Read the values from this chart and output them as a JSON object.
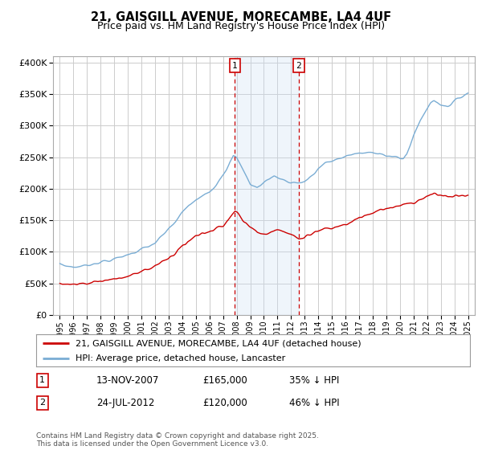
{
  "title": "21, GAISGILL AVENUE, MORECAMBE, LA4 4UF",
  "subtitle": "Price paid vs. HM Land Registry's House Price Index (HPI)",
  "legend_line1": "21, GAISGILL AVENUE, MORECAMBE, LA4 4UF (detached house)",
  "legend_line2": "HPI: Average price, detached house, Lancaster",
  "annotation1_date": "13-NOV-2007",
  "annotation1_price": "£165,000",
  "annotation1_hpi": "35% ↓ HPI",
  "annotation2_date": "24-JUL-2012",
  "annotation2_price": "£120,000",
  "annotation2_hpi": "46% ↓ HPI",
  "marker1_x": 2007.87,
  "marker2_x": 2012.56,
  "vline1_x": 2007.87,
  "vline2_x": 2012.56,
  "ylim": [
    0,
    410000
  ],
  "xlim": [
    1994.5,
    2025.5
  ],
  "yticks": [
    0,
    50000,
    100000,
    150000,
    200000,
    250000,
    300000,
    350000,
    400000
  ],
  "xticks": [
    1995,
    1996,
    1997,
    1998,
    1999,
    2000,
    2001,
    2002,
    2003,
    2004,
    2005,
    2006,
    2007,
    2008,
    2009,
    2010,
    2011,
    2012,
    2013,
    2014,
    2015,
    2016,
    2017,
    2018,
    2019,
    2020,
    2021,
    2022,
    2023,
    2024,
    2025
  ],
  "footer": "Contains HM Land Registry data © Crown copyright and database right 2025.\nThis data is licensed under the Open Government Licence v3.0.",
  "red_line_color": "#cc0000",
  "blue_line_color": "#7aadd4",
  "grid_color": "#cccccc",
  "shade_color": "#cce0f5",
  "background_color": "#ffffff",
  "hpi_x": [
    1995.0,
    1995.08,
    1995.17,
    1995.25,
    1995.33,
    1995.42,
    1995.5,
    1995.58,
    1995.67,
    1995.75,
    1995.83,
    1995.92,
    1996.0,
    1996.08,
    1996.17,
    1996.25,
    1996.33,
    1996.42,
    1996.5,
    1996.58,
    1996.67,
    1996.75,
    1996.83,
    1996.92,
    1997.0,
    1997.08,
    1997.17,
    1997.25,
    1997.33,
    1997.42,
    1997.5,
    1997.58,
    1997.67,
    1997.75,
    1997.83,
    1997.92,
    1998.0,
    1998.08,
    1998.17,
    1998.25,
    1998.33,
    1998.42,
    1998.5,
    1998.58,
    1998.67,
    1998.75,
    1998.83,
    1998.92,
    1999.0,
    1999.08,
    1999.17,
    1999.25,
    1999.33,
    1999.42,
    1999.5,
    1999.58,
    1999.67,
    1999.75,
    1999.83,
    1999.92,
    2000.0,
    2000.08,
    2000.17,
    2000.25,
    2000.33,
    2000.42,
    2000.5,
    2000.58,
    2000.67,
    2000.75,
    2000.83,
    2000.92,
    2001.0,
    2001.08,
    2001.17,
    2001.25,
    2001.33,
    2001.42,
    2001.5,
    2001.58,
    2001.67,
    2001.75,
    2001.83,
    2001.92,
    2002.0,
    2002.08,
    2002.17,
    2002.25,
    2002.33,
    2002.42,
    2002.5,
    2002.58,
    2002.67,
    2002.75,
    2002.83,
    2002.92,
    2003.0,
    2003.08,
    2003.17,
    2003.25,
    2003.33,
    2003.42,
    2003.5,
    2003.58,
    2003.67,
    2003.75,
    2003.83,
    2003.92,
    2004.0,
    2004.08,
    2004.17,
    2004.25,
    2004.33,
    2004.42,
    2004.5,
    2004.58,
    2004.67,
    2004.75,
    2004.83,
    2004.92,
    2005.0,
    2005.08,
    2005.17,
    2005.25,
    2005.33,
    2005.42,
    2005.5,
    2005.58,
    2005.67,
    2005.75,
    2005.83,
    2005.92,
    2006.0,
    2006.08,
    2006.17,
    2006.25,
    2006.33,
    2006.42,
    2006.5,
    2006.58,
    2006.67,
    2006.75,
    2006.83,
    2006.92,
    2007.0,
    2007.08,
    2007.17,
    2007.25,
    2007.33,
    2007.42,
    2007.5,
    2007.58,
    2007.67,
    2007.75,
    2007.83,
    2007.92,
    2008.0,
    2008.08,
    2008.17,
    2008.25,
    2008.33,
    2008.42,
    2008.5,
    2008.58,
    2008.67,
    2008.75,
    2008.83,
    2008.92,
    2009.0,
    2009.08,
    2009.17,
    2009.25,
    2009.33,
    2009.42,
    2009.5,
    2009.58,
    2009.67,
    2009.75,
    2009.83,
    2009.92,
    2010.0,
    2010.08,
    2010.17,
    2010.25,
    2010.33,
    2010.42,
    2010.5,
    2010.58,
    2010.67,
    2010.75,
    2010.83,
    2010.92,
    2011.0,
    2011.08,
    2011.17,
    2011.25,
    2011.33,
    2011.42,
    2011.5,
    2011.58,
    2011.67,
    2011.75,
    2011.83,
    2011.92,
    2012.0,
    2012.08,
    2012.17,
    2012.25,
    2012.33,
    2012.42,
    2012.5,
    2012.58,
    2012.67,
    2012.75,
    2012.83,
    2012.92,
    2013.0,
    2013.08,
    2013.17,
    2013.25,
    2013.33,
    2013.42,
    2013.5,
    2013.58,
    2013.67,
    2013.75,
    2013.83,
    2013.92,
    2014.0,
    2014.08,
    2014.17,
    2014.25,
    2014.33,
    2014.42,
    2014.5,
    2014.58,
    2014.67,
    2014.75,
    2014.83,
    2014.92,
    2015.0,
    2015.08,
    2015.17,
    2015.25,
    2015.33,
    2015.42,
    2015.5,
    2015.58,
    2015.67,
    2015.75,
    2015.83,
    2015.92,
    2016.0,
    2016.08,
    2016.17,
    2016.25,
    2016.33,
    2016.42,
    2016.5,
    2016.58,
    2016.67,
    2016.75,
    2016.83,
    2016.92,
    2017.0,
    2017.08,
    2017.17,
    2017.25,
    2017.33,
    2017.42,
    2017.5,
    2017.58,
    2017.67,
    2017.75,
    2017.83,
    2017.92,
    2018.0,
    2018.08,
    2018.17,
    2018.25,
    2018.33,
    2018.42,
    2018.5,
    2018.58,
    2018.67,
    2018.75,
    2018.83,
    2018.92,
    2019.0,
    2019.08,
    2019.17,
    2019.25,
    2019.33,
    2019.42,
    2019.5,
    2019.58,
    2019.67,
    2019.75,
    2019.83,
    2019.92,
    2020.0,
    2020.08,
    2020.17,
    2020.25,
    2020.33,
    2020.42,
    2020.5,
    2020.58,
    2020.67,
    2020.75,
    2020.83,
    2020.92,
    2021.0,
    2021.08,
    2021.17,
    2021.25,
    2021.33,
    2021.42,
    2021.5,
    2021.58,
    2021.67,
    2021.75,
    2021.83,
    2021.92,
    2022.0,
    2022.08,
    2022.17,
    2022.25,
    2022.33,
    2022.42,
    2022.5,
    2022.58,
    2022.67,
    2022.75,
    2022.83,
    2022.92,
    2023.0,
    2023.08,
    2023.17,
    2023.25,
    2023.33,
    2023.42,
    2023.5,
    2023.58,
    2023.67,
    2023.75,
    2023.83,
    2023.92,
    2024.0,
    2024.08,
    2024.17,
    2024.25,
    2024.33,
    2024.42,
    2024.5,
    2024.58,
    2024.67,
    2024.75,
    2024.83,
    2024.92,
    2025.0
  ],
  "red_x": [
    1995.0,
    1995.5,
    1996.0,
    1996.5,
    1997.0,
    1997.5,
    1998.0,
    1998.5,
    1999.0,
    1999.5,
    2000.0,
    2000.5,
    2001.0,
    2001.5,
    2002.0,
    2002.5,
    2003.0,
    2003.5,
    2004.0,
    2004.5,
    2005.0,
    2005.5,
    2006.0,
    2006.5,
    2007.0,
    2007.5,
    2007.87,
    2008.0,
    2008.5,
    2009.0,
    2009.5,
    2010.0,
    2010.5,
    2011.0,
    2011.5,
    2012.0,
    2012.56,
    2013.0,
    2013.5,
    2014.0,
    2014.5,
    2015.0,
    2015.5,
    2016.0,
    2016.5,
    2017.0,
    2017.5,
    2018.0,
    2018.5,
    2019.0,
    2019.5,
    2020.0,
    2020.5,
    2021.0,
    2021.5,
    2022.0,
    2022.5,
    2023.0,
    2023.5,
    2024.0,
    2024.5,
    2025.0
  ],
  "red_y": [
    50000,
    49000,
    48500,
    50000,
    51000,
    53000,
    55000,
    57000,
    58000,
    60000,
    62000,
    65000,
    68000,
    72000,
    78000,
    84000,
    90000,
    98000,
    108000,
    118000,
    125000,
    130000,
    133000,
    138000,
    143000,
    155000,
    165000,
    162000,
    148000,
    138000,
    132000,
    130000,
    133000,
    137000,
    133000,
    128000,
    120000,
    124000,
    128000,
    132000,
    136000,
    138000,
    140000,
    143000,
    148000,
    153000,
    157000,
    162000,
    165000,
    168000,
    170000,
    172000,
    175000,
    178000,
    182000,
    188000,
    192000,
    190000,
    187000,
    188000,
    190000,
    190000
  ]
}
